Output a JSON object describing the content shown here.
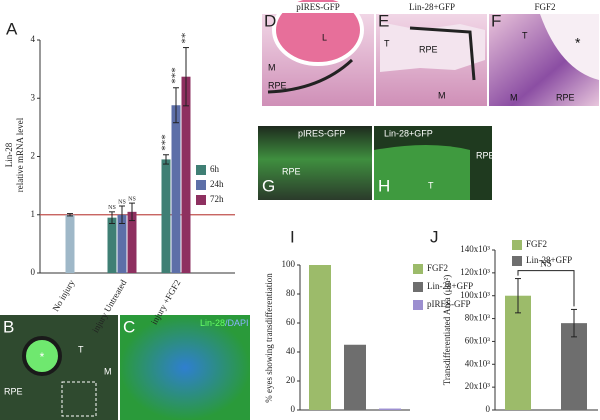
{
  "chart_data": [
    {
      "type": "bar",
      "panel": "A",
      "ylabel": [
        "Lin-28",
        "relative mRNA level"
      ],
      "categories": [
        "No injury",
        "injury Untreated",
        "injury +FGF2"
      ],
      "control": {
        "color": "#9fb8c8",
        "values": [
          1.0,
          null,
          null
        ],
        "errors": [
          0.02,
          null,
          null
        ]
      },
      "series": [
        {
          "name": "6h",
          "color": "#3f7f74",
          "values": [
            null,
            0.95,
            1.95
          ],
          "errors": [
            null,
            0.1,
            0.08
          ],
          "annotations": [
            null,
            "NS",
            "***"
          ]
        },
        {
          "name": "24h",
          "color": "#5d6fa8",
          "values": [
            null,
            1.0,
            2.88
          ],
          "errors": [
            null,
            0.15,
            0.3
          ],
          "annotations": [
            null,
            "NS",
            "***"
          ]
        },
        {
          "name": "72h",
          "color": "#8e3060",
          "values": [
            null,
            1.05,
            3.37
          ],
          "errors": [
            null,
            0.15,
            0.5
          ],
          "annotations": [
            null,
            "NS",
            "**"
          ]
        }
      ],
      "reference_line": {
        "value": 1,
        "color": "#c0504d"
      },
      "ylim": [
        0,
        4
      ],
      "yticks": [
        0,
        1,
        2,
        3,
        4
      ]
    },
    {
      "type": "bar",
      "panel": "I",
      "ylabel": "% eyes showing transdifferentiation",
      "categories": [
        null
      ],
      "series": [
        {
          "name": "FGF2",
          "color": "#9cbb6a",
          "values": [
            100
          ]
        },
        {
          "name": "Lin-28+GFP",
          "color": "#6e6e6e",
          "values": [
            45
          ]
        },
        {
          "name": "pIRES-GFP",
          "color": "#9c8fd0",
          "values": [
            1
          ]
        }
      ],
      "ylim": [
        0,
        100
      ],
      "yticks": [
        0,
        20,
        40,
        60,
        80,
        100
      ]
    },
    {
      "type": "bar",
      "panel": "J",
      "ylabel": "Transdifferentiated Area (μm²)",
      "categories": [
        null
      ],
      "series": [
        {
          "name": "FGF2",
          "color": "#9cbb6a",
          "values": [
            100000
          ],
          "errors": [
            15000
          ]
        },
        {
          "name": "Lin-28+GFP",
          "color": "#6e6e6e",
          "values": [
            76000
          ],
          "errors": [
            12000
          ]
        }
      ],
      "annotation": "NS",
      "ylim": [
        0,
        140000
      ],
      "yticks": [
        0,
        {
          "value": 20000,
          "label": "20x10³"
        },
        {
          "value": 40000,
          "label": "40x10³"
        },
        {
          "value": 60000,
          "label": "60x10³"
        },
        {
          "value": 80000,
          "label": "80x10³"
        },
        {
          "value": 100000,
          "label": "100x10³"
        },
        {
          "value": 120000,
          "label": "120x10³"
        },
        {
          "value": 140000,
          "label": "140x10³"
        }
      ]
    }
  ],
  "images": [
    {
      "letter": "B",
      "labels": [
        "*",
        "T",
        "M",
        "RPE"
      ]
    },
    {
      "letter": "C",
      "title": [
        "Lin-28",
        "/DAPI"
      ]
    },
    {
      "letter": "D",
      "title": "pIRES-GFP",
      "labels": [
        "L",
        "M",
        "RPE"
      ]
    },
    {
      "letter": "E",
      "title": "Lin-28+GFP",
      "labels": [
        "T",
        "RPE",
        "M"
      ]
    },
    {
      "letter": "F",
      "title": "FGF2",
      "labels": [
        "T",
        "*",
        "RPE",
        "M"
      ]
    },
    {
      "letter": "G",
      "title": "pIRES-GFP",
      "labels": [
        "RPE"
      ]
    },
    {
      "letter": "H",
      "title": "Lin-28+GFP",
      "labels": [
        "T",
        "RPE"
      ]
    }
  ]
}
